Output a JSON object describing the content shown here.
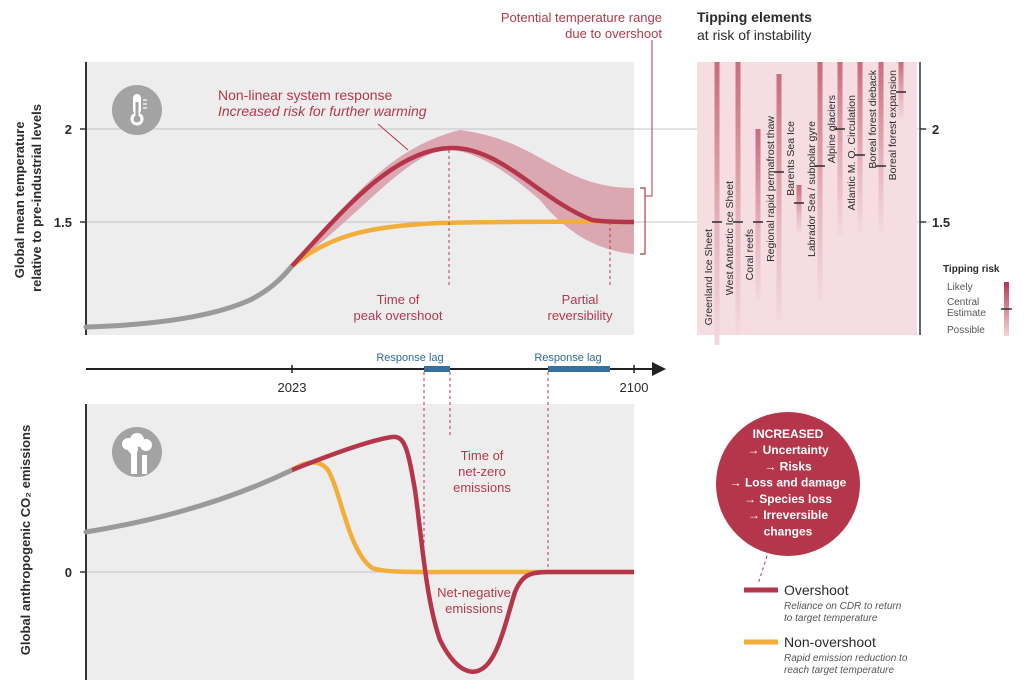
{
  "colors": {
    "overshoot": "#b5364b",
    "overshoot_band": "#d79aa4",
    "non_overshoot": "#f2ad3b",
    "history": "#9a9a9a",
    "panel_bg": "#ededed",
    "response_lag": "#3471a0",
    "tipping_bg": "#f6dde1",
    "accent_text": "#b23a4c"
  },
  "top_panel": {
    "ylabel_line1": "Global mean temperature",
    "ylabel_line2": "relative to pre-industrial levels",
    "tick_2": "2",
    "tick_1_5": "1.5",
    "icon": "thermometer-icon",
    "annot_nonlinear_line1": "Non-linear system response",
    "annot_nonlinear_line2": "Increased risk for further warming",
    "annot_range_line1": "Potential temperature range",
    "annot_range_line2": "due to overshoot",
    "annot_peak_line1": "Time of",
    "annot_peak_line2": "peak overshoot",
    "annot_partial_line1": "Partial",
    "annot_partial_line2": "reversibility"
  },
  "timeline": {
    "label_2023": "2023",
    "label_2100": "2100",
    "response_lag_1": "Response lag",
    "response_lag_2": "Response lag"
  },
  "bottom_panel": {
    "ylabel": "Global anthropogenic CO₂ emissions",
    "tick_0": "0",
    "icon": "smokestack-icon",
    "annot_netzero_line1": "Time of",
    "annot_netzero_line2": "net-zero",
    "annot_netzero_line3": "emissions",
    "annot_netneg_line1": "Net-negative",
    "annot_netneg_line2": "emissions"
  },
  "tipping": {
    "title": "Tipping elements",
    "subtitle": "at risk of instability",
    "tick_2": "2",
    "tick_1_5": "1.5",
    "elements": [
      "Greenland Ice Sheet",
      "West Antarctic Ice Sheet",
      "Coral reefs",
      "Regional rapid permafrost thaw",
      "Barents Sea Ice",
      "Labrador Sea / subpolar gyre",
      "Alpine glaciers",
      "Atlantic M. O. Circulation",
      "Boreal forest dieback",
      "Boreal forest expansion"
    ],
    "risk_title": "Tipping risk",
    "risk_likely": "Likely",
    "risk_central_line1": "Central",
    "risk_central_line2": "Estimate",
    "risk_possible": "Possible"
  },
  "increased_circle": {
    "title": "INCREASED",
    "items": [
      "→ Uncertainty",
      "→ Risks",
      "→ Loss and damage",
      "→ Species loss",
      "→ Irreversible",
      "changes"
    ]
  },
  "legend": {
    "overshoot_label": "Overshoot",
    "overshoot_note_line1": "Reliance on CDR to return",
    "overshoot_note_line2": "to target temperature",
    "non_overshoot_label": "Non-overshoot",
    "non_overshoot_note_line1": "Rapid emission reduction to",
    "non_overshoot_note_line2": "reach target temperature"
  }
}
